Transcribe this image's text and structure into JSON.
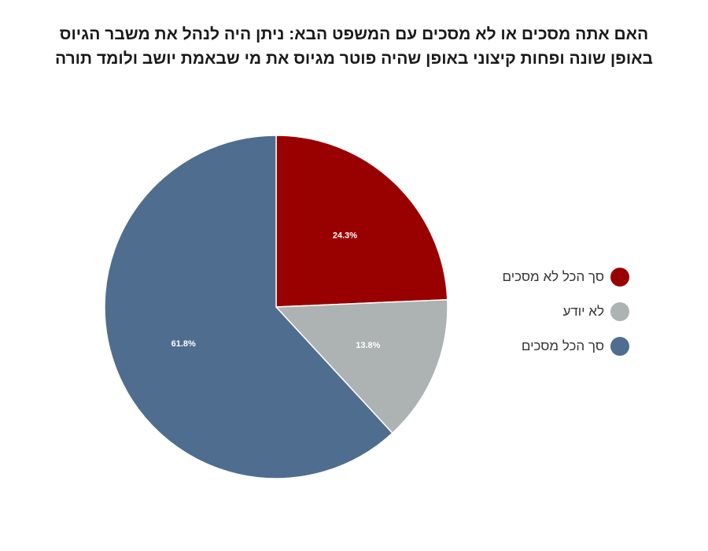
{
  "chart_data": {
    "type": "pie",
    "title_lines": [
      "האם אתה מסכים או לא מסכים עם המשפט הבא: ניתן היה לנהל את משבר הגיוס",
      "באופן שונה ופחות קיצוני באופן שהיה פוטר מגיוס את מי שבאמת יושב ולומד תורה"
    ],
    "slices": [
      {
        "name": "סך הכל לא מסכים",
        "value": 24.3,
        "label": "24.3%",
        "color": "#990000"
      },
      {
        "name": "לא יודע",
        "value": 13.8,
        "label": "13.8%",
        "color": "#adb2b2"
      },
      {
        "name": "סך הכל מסכים",
        "value": 61.8,
        "label": "61.8%",
        "color": "#4f6d8f"
      }
    ],
    "start": "12 o'clock",
    "direction": "clockwise",
    "legend_position": "right"
  }
}
